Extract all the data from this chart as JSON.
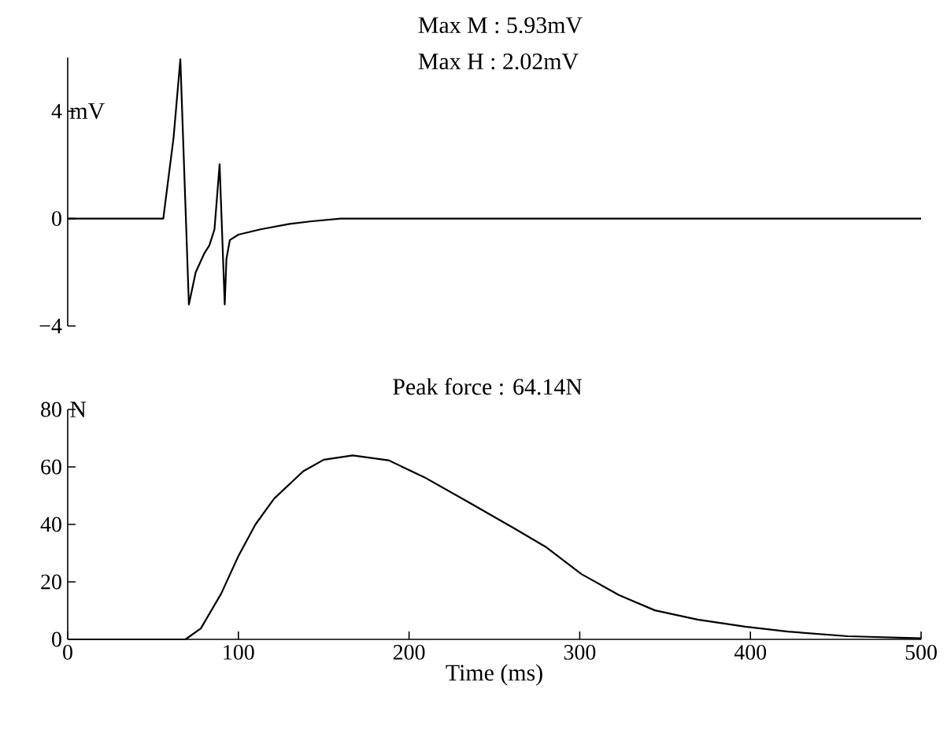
{
  "chart_data": [
    {
      "type": "line",
      "ylabel": "mV",
      "annotations": [
        "Max M : 5.93mV",
        "Max H : 2.02mV"
      ],
      "xlim": [
        0,
        500
      ],
      "ylim": [
        -4,
        6
      ],
      "yticks": [
        {
          "value": -4,
          "label": "−4"
        },
        0,
        4
      ],
      "tick_labels": "y",
      "grid": false,
      "marker": "none",
      "line_style": "solid",
      "series": [
        {
          "color": "#000000",
          "x": [
            0,
            56,
            58,
            62,
            66,
            71,
            75,
            80,
            83,
            86,
            89,
            92,
            93,
            95,
            100,
            113,
            130,
            143,
            160,
            250,
            350,
            500
          ],
          "values": [
            0,
            0,
            1.0,
            3.0,
            5.93,
            -3.2,
            -2.0,
            -1.3,
            -1.0,
            -0.4,
            2.02,
            -3.2,
            -1.5,
            -0.8,
            -0.6,
            -0.4,
            -0.2,
            -0.1,
            0,
            0,
            0,
            0
          ]
        }
      ]
    },
    {
      "type": "line",
      "xlabel": "Time (ms)",
      "ylabel": "N",
      "annotations": [
        "Peak force : 64.14N"
      ],
      "xlim": [
        0,
        500
      ],
      "ylim": [
        0,
        80
      ],
      "xticks": [
        0,
        100,
        200,
        300,
        400,
        500
      ],
      "yticks": [
        0,
        20,
        40,
        60,
        80
      ],
      "grid": false,
      "marker": "none",
      "line_style": "solid",
      "series": [
        {
          "color": "#000000",
          "x": [
            0,
            69,
            78,
            90,
            100,
            110,
            121,
            138,
            150,
            167,
            188,
            209,
            234,
            262,
            280,
            301,
            323,
            344,
            369,
            397,
            422,
            457,
            500
          ],
          "values": [
            0,
            0,
            3.8,
            16,
            29,
            40,
            49,
            58.5,
            62.5,
            64,
            62.3,
            56.4,
            48,
            38.5,
            32.2,
            22.7,
            15.4,
            10.1,
            6.9,
            4.4,
            2.7,
            1.1,
            0.4
          ]
        }
      ]
    }
  ]
}
